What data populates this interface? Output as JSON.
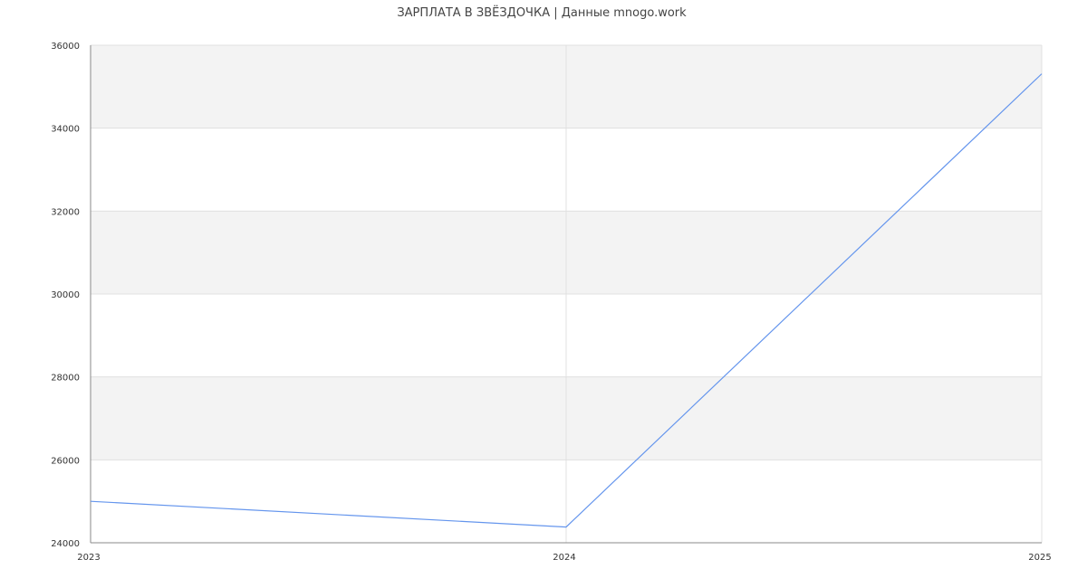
{
  "chart_data": {
    "type": "line",
    "title": "ЗАРПЛАТА В ЗВЁЗДОЧКА | Данные mnogo.work",
    "x": [
      "2023",
      "2024",
      "2025"
    ],
    "series": [
      {
        "values": [
          25000,
          24380,
          35310
        ],
        "color": "#6495ed"
      }
    ],
    "ylim": [
      24000,
      36000
    ],
    "yticks": [
      24000,
      26000,
      28000,
      30000,
      32000,
      34000,
      36000
    ],
    "grid": true,
    "band_color": "#f3f3f3",
    "grid_color": "#e0e0e0"
  }
}
